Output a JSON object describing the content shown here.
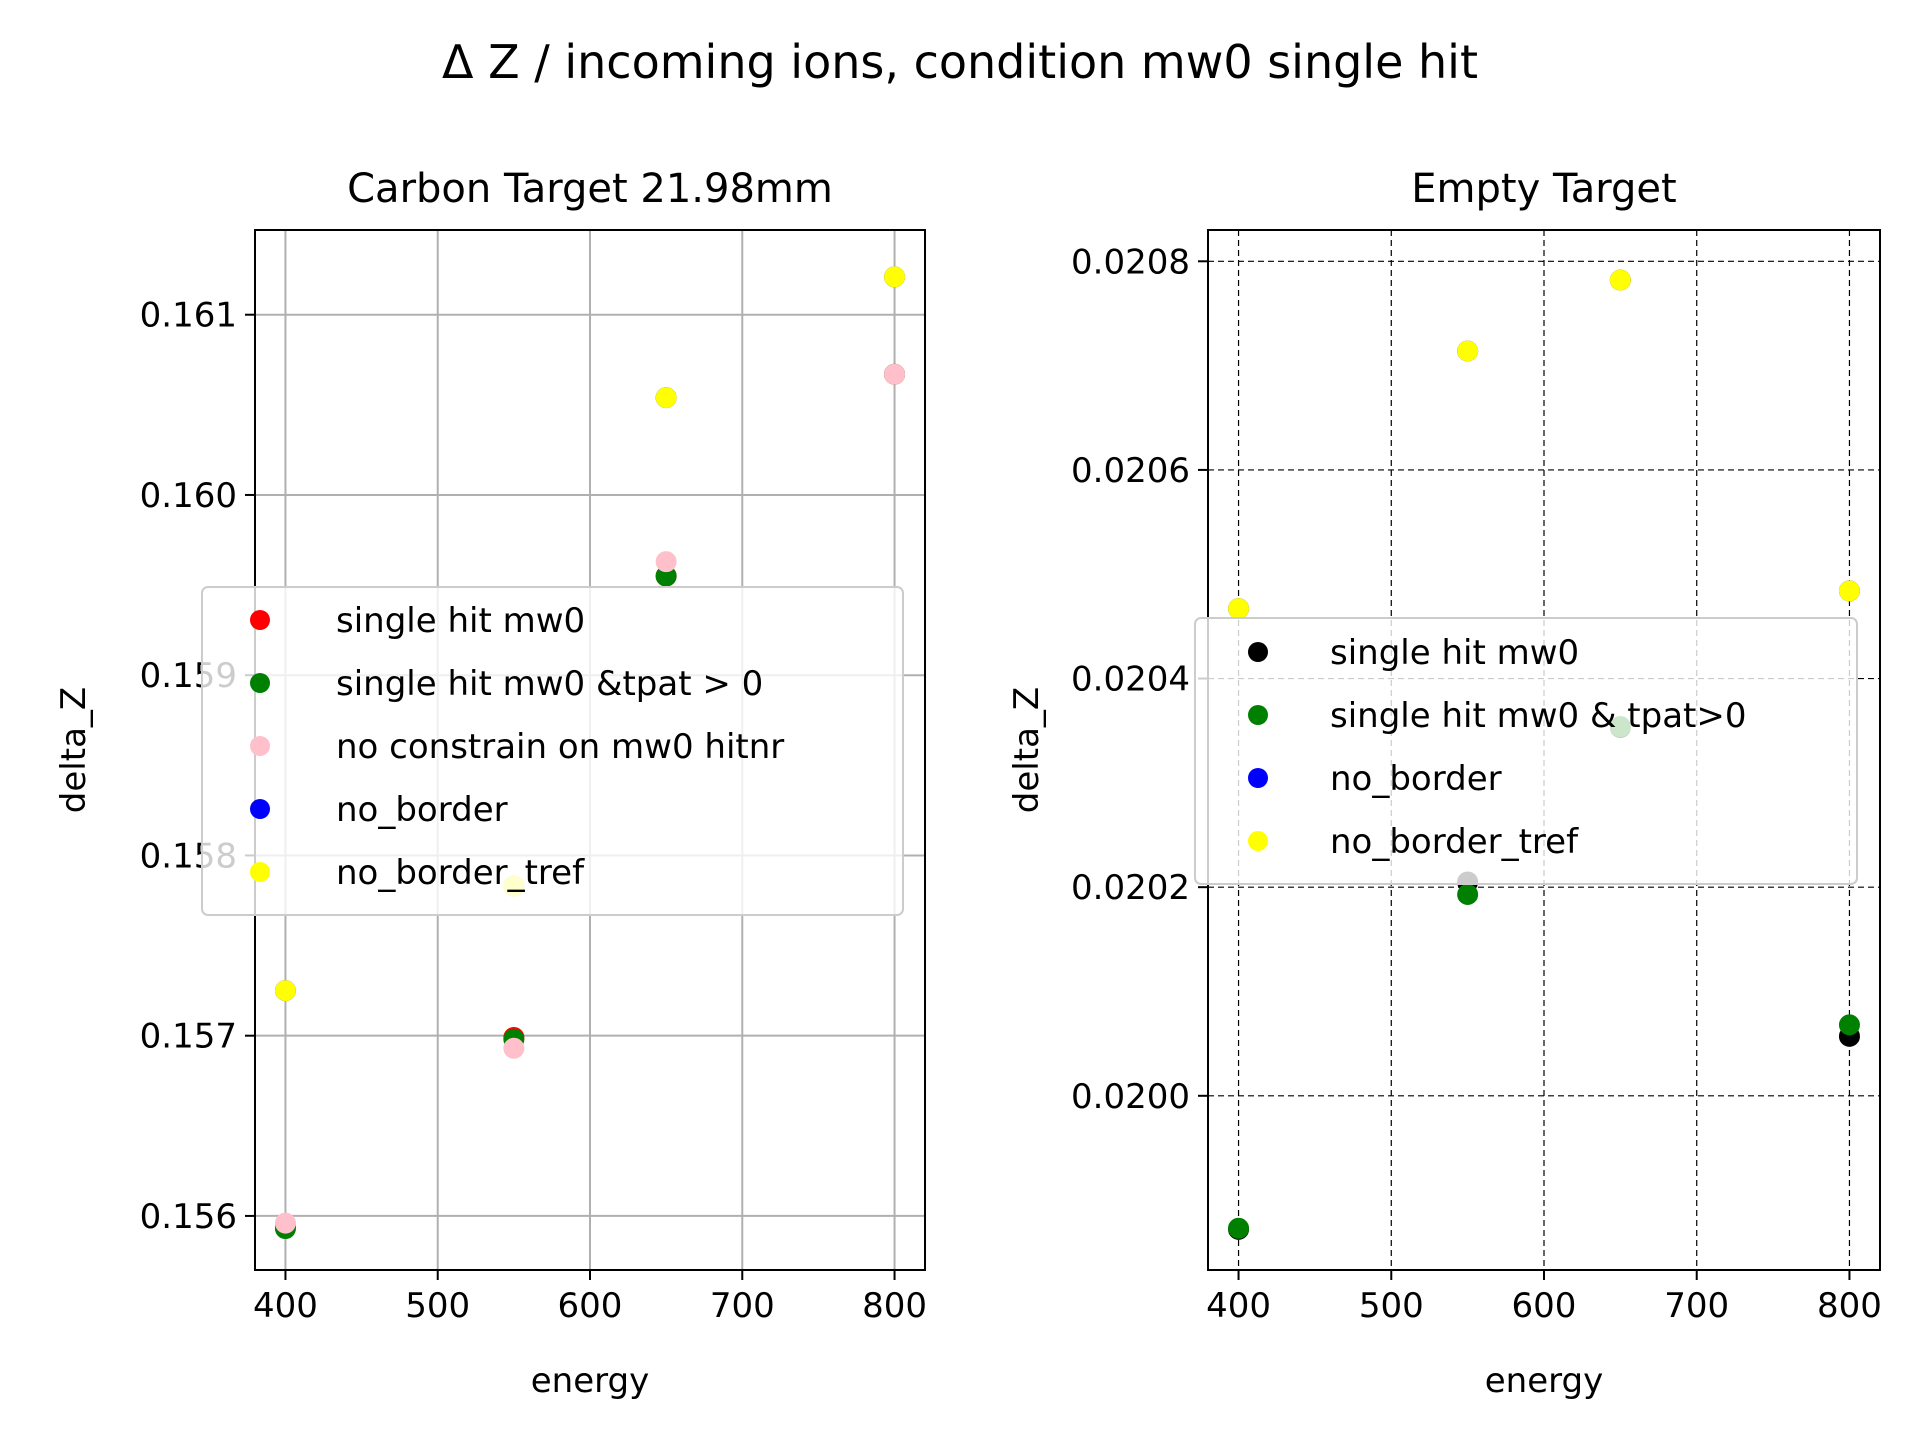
{
  "figure": {
    "suptitle": "Δ Z / incoming ions, condition mw0 single hit"
  },
  "chart_data": [
    {
      "type": "scatter",
      "title": "Carbon Target 21.98mm",
      "xlabel": "energy",
      "ylabel": "delta_Z",
      "xlim": [
        380,
        820
      ],
      "ylim": [
        0.1557,
        0.16147
      ],
      "xticks": [
        400,
        500,
        600,
        700,
        800
      ],
      "xtick_labels": [
        "400",
        "500",
        "600",
        "700",
        "800"
      ],
      "yticks": [
        0.156,
        0.157,
        0.158,
        0.159,
        0.16,
        0.161
      ],
      "ytick_labels": [
        "0.156",
        "0.157",
        "0.158",
        "0.159",
        "0.160",
        "0.161"
      ],
      "grid": true,
      "grid_style": "solid",
      "legend_position": "center",
      "series": [
        {
          "name": "single hit mw0",
          "color": "#ff0000",
          "x": [
            400,
            550,
            650,
            800
          ],
          "y": [
            0.15594,
            0.15699,
            0.15955,
            0.16067
          ]
        },
        {
          "name": "single hit mw0 &tpat > 0",
          "color": "#008000",
          "x": [
            400,
            550,
            650,
            800
          ],
          "y": [
            0.15593,
            0.15698,
            0.15955,
            0.16067
          ]
        },
        {
          "name": "no constrain on mw0 hitnr",
          "color": "#ffc0cb",
          "x": [
            400,
            550,
            650,
            800
          ],
          "y": [
            0.15596,
            0.15693,
            0.15963,
            0.16067
          ]
        },
        {
          "name": "no_border",
          "color": "#0000ff",
          "x": [
            400,
            550,
            650,
            800
          ],
          "y": [
            0.15725,
            0.15783,
            0.16054,
            0.16121
          ]
        },
        {
          "name": "no_border_tref",
          "color": "#ffff00",
          "x": [
            400,
            550,
            650,
            800
          ],
          "y": [
            0.15725,
            0.15783,
            0.16054,
            0.16121
          ]
        }
      ]
    },
    {
      "type": "scatter",
      "title": "Empty Target",
      "xlabel": "energy",
      "ylabel": "delta_Z",
      "xlim": [
        380,
        820
      ],
      "ylim": [
        0.019833,
        0.02083
      ],
      "xticks": [
        400,
        500,
        600,
        700,
        800
      ],
      "xtick_labels": [
        "400",
        "500",
        "600",
        "700",
        "800"
      ],
      "yticks": [
        0.02,
        0.0202,
        0.0204,
        0.0206,
        0.0208
      ],
      "ytick_labels": [
        "0.0200",
        "0.0202",
        "0.0204",
        "0.0206",
        "0.0208"
      ],
      "grid": true,
      "grid_style": "dashed",
      "legend_position": "center",
      "series": [
        {
          "name": "single hit mw0",
          "color": "#000000",
          "x": [
            400,
            550,
            650,
            800
          ],
          "y": [
            0.019872,
            0.020205,
            0.020353,
            0.020057
          ]
        },
        {
          "name": "single hit mw0 & tpat>0",
          "color": "#008000",
          "x": [
            400,
            550,
            650,
            800
          ],
          "y": [
            0.019873,
            0.020193,
            0.020354,
            0.020068
          ]
        },
        {
          "name": "no_border",
          "color": "#0000ff",
          "x": [
            400,
            550,
            650,
            800
          ],
          "y": [
            0.020467,
            0.020714,
            0.020782,
            0.020484
          ]
        },
        {
          "name": "no_border_tref",
          "color": "#ffff00",
          "x": [
            400,
            550,
            650,
            800
          ],
          "y": [
            0.020467,
            0.020714,
            0.020782,
            0.020484
          ]
        }
      ]
    }
  ]
}
